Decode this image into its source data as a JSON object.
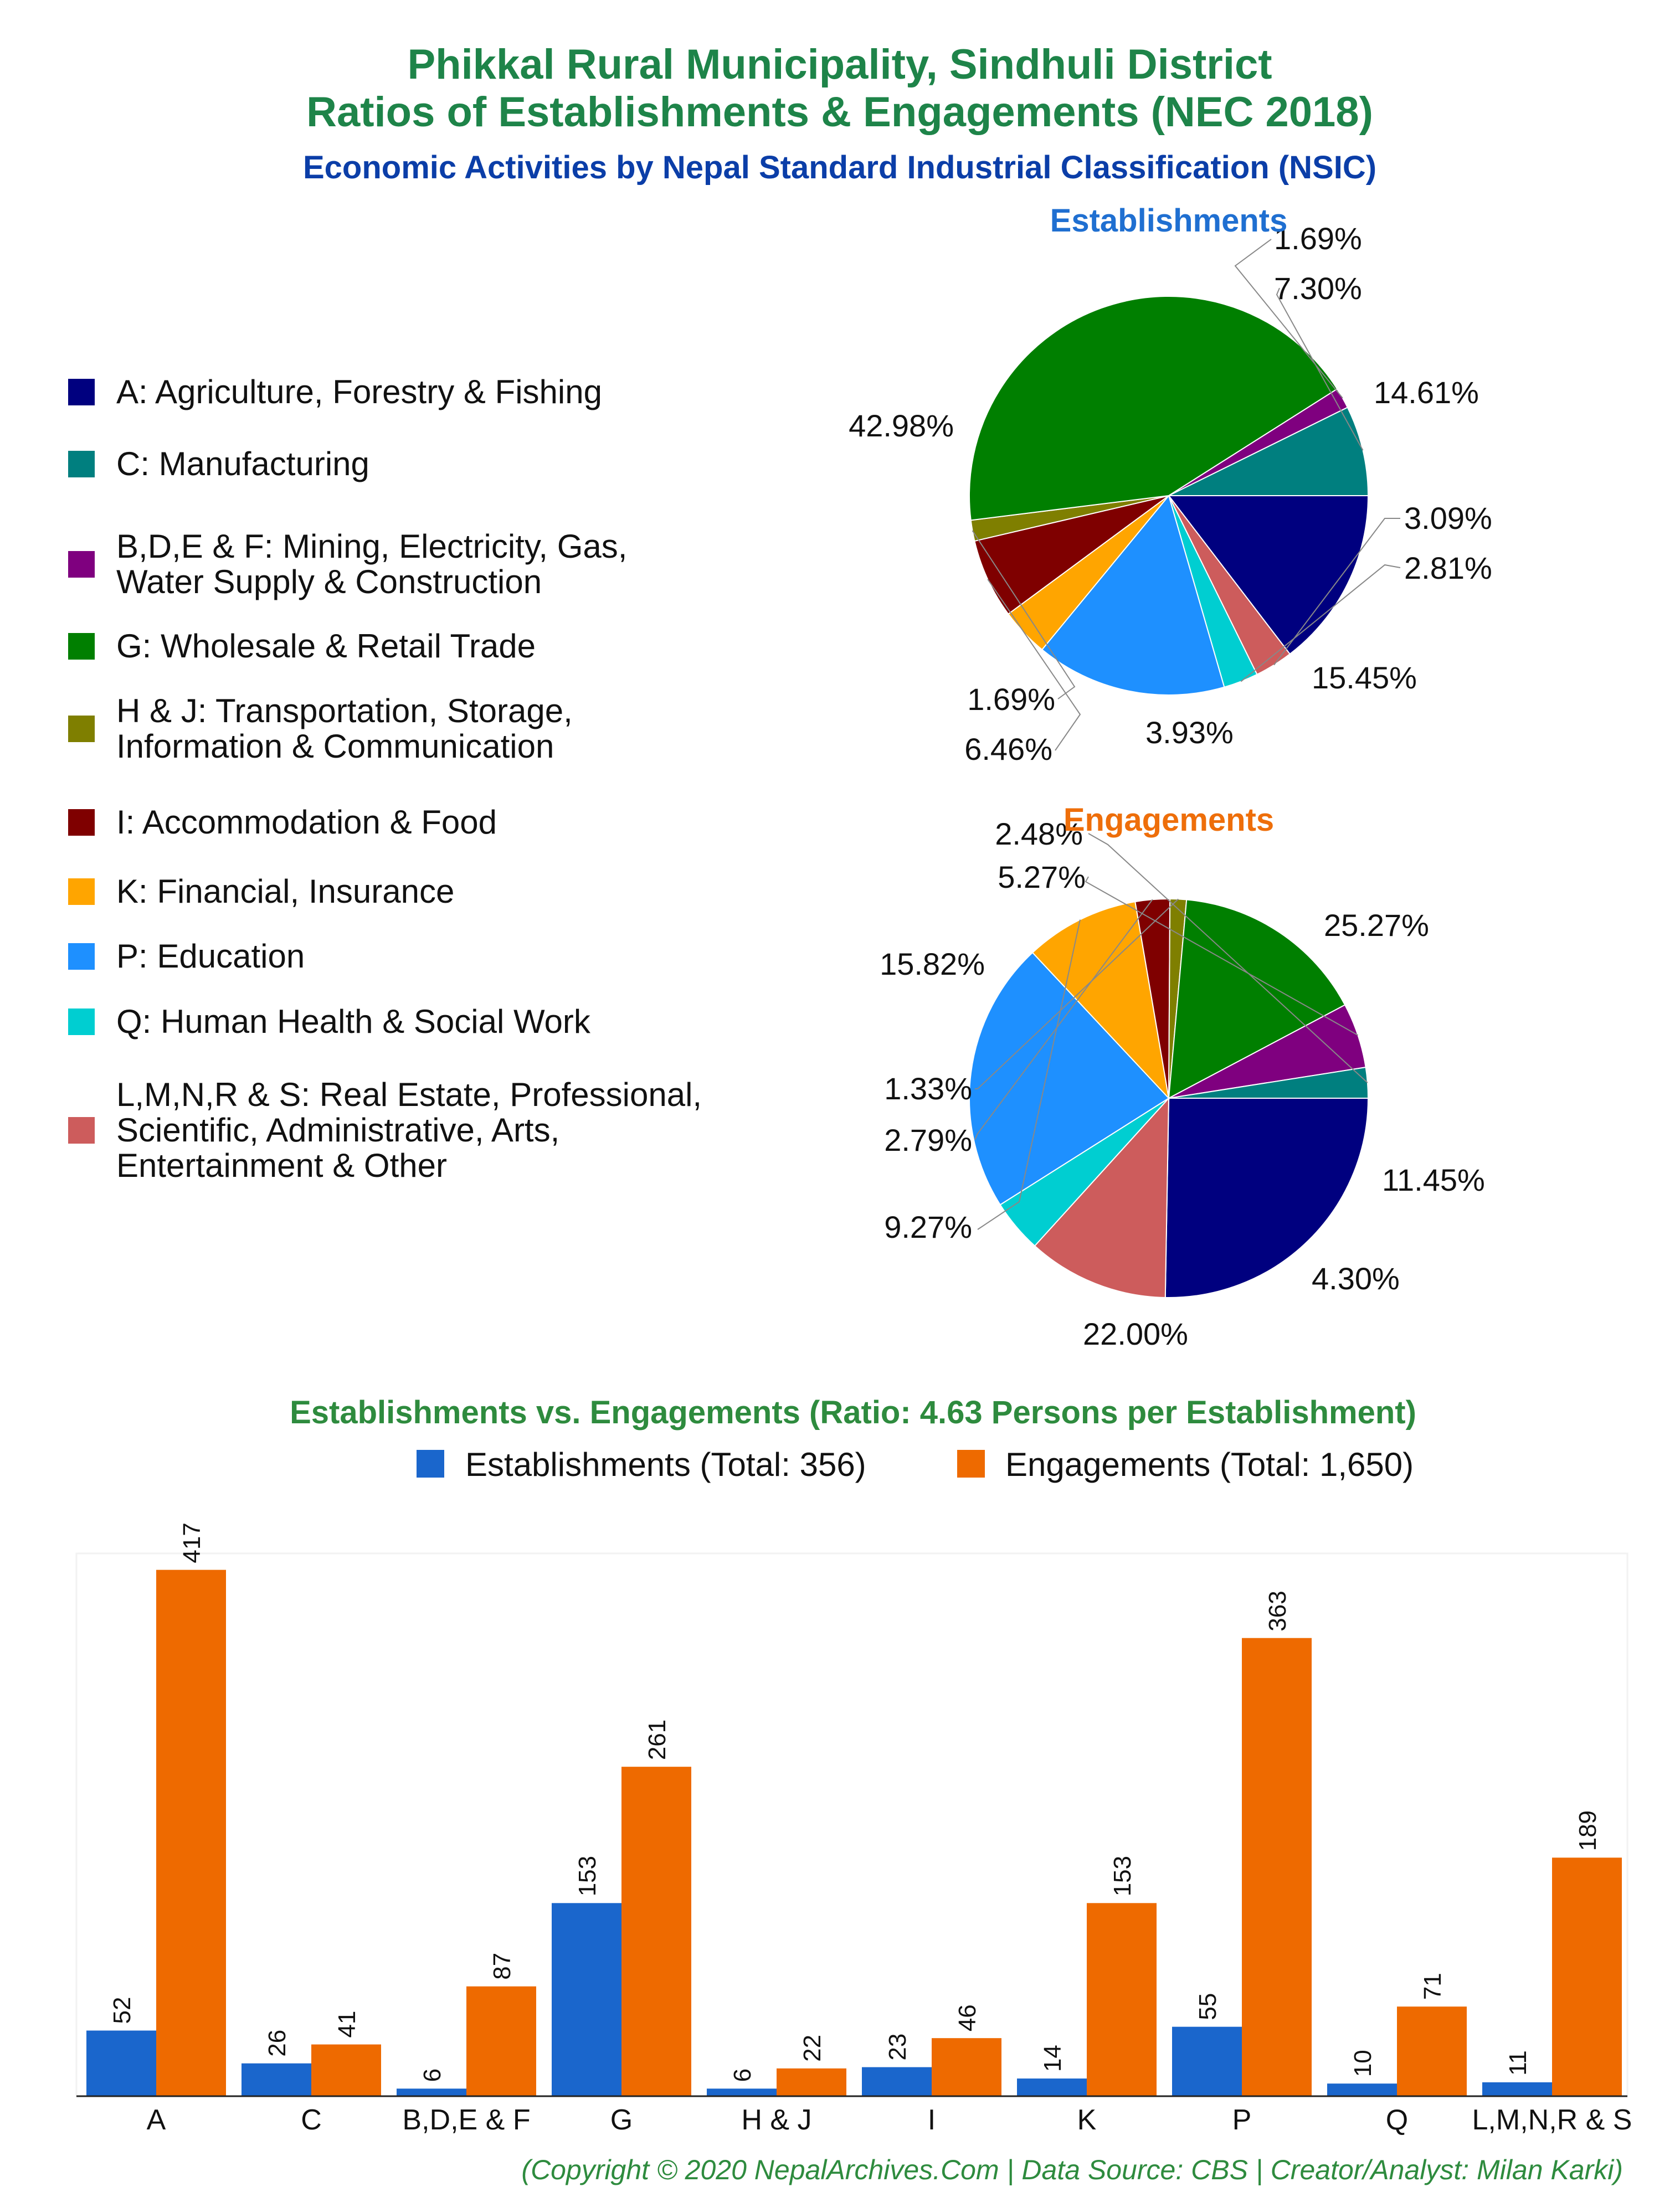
{
  "header": {
    "title_line1": "Phikkal Rural Municipality, Sindhuli District",
    "title_line2": "Ratios of Establishments & Engagements (NEC 2018)",
    "subtitle": "Economic Activities by Nepal Standard Industrial Classification (NSIC)"
  },
  "legend": [
    {
      "label": "A: Agriculture, Forestry & Fishing",
      "color": "#00007f"
    },
    {
      "label": "C: Manufacturing",
      "color": "#007f7f"
    },
    {
      "label": "B,D,E & F: Mining, Electricity, Gas,",
      "label2": "Water Supply & Construction",
      "color": "#7f007f"
    },
    {
      "label": "G: Wholesale & Retail Trade",
      "color": "#007f00"
    },
    {
      "label": "H & J: Transportation, Storage,",
      "label2": "Information & Communication",
      "color": "#7f7f00"
    },
    {
      "label": "I: Accommodation & Food",
      "color": "#7f0000"
    },
    {
      "label": "K: Financial, Insurance",
      "color": "#ffa500"
    },
    {
      "label": "P: Education",
      "color": "#1e90ff"
    },
    {
      "label": "Q: Human Health & Social Work",
      "color": "#00ced1"
    },
    {
      "label": "L,M,N,R & S: Real Estate, Professional,",
      "label2": "Scientific, Administrative, Arts,",
      "label3": "Entertainment & Other",
      "color": "#cd5c5c"
    }
  ],
  "chart_data": [
    {
      "type": "pie",
      "title": "Establishments",
      "slices": [
        {
          "category": "A",
          "value": 14.61,
          "label": "14.61%"
        },
        {
          "category": "L,M,N,R & S",
          "value": 3.09,
          "label": "3.09%"
        },
        {
          "category": "Q",
          "value": 2.81,
          "label": "2.81%"
        },
        {
          "category": "P",
          "value": 15.45,
          "label": "15.45%"
        },
        {
          "category": "K",
          "value": 3.93,
          "label": "3.93%"
        },
        {
          "category": "I",
          "value": 6.46,
          "label": "6.46%"
        },
        {
          "category": "H & J",
          "value": 1.69,
          "label": "1.69%"
        },
        {
          "category": "G",
          "value": 42.98,
          "label": "42.98%"
        },
        {
          "category": "B,D,E & F",
          "value": 1.69,
          "label": "1.69%"
        },
        {
          "category": "C",
          "value": 7.3,
          "label": "7.30%"
        }
      ]
    },
    {
      "type": "pie",
      "title": "Engagements",
      "slices": [
        {
          "category": "A",
          "value": 25.27,
          "label": "25.27%"
        },
        {
          "category": "L,M,N,R & S",
          "value": 11.45,
          "label": "11.45%"
        },
        {
          "category": "Q",
          "value": 4.3,
          "label": "4.30%"
        },
        {
          "category": "P",
          "value": 22.0,
          "label": "22.00%"
        },
        {
          "category": "K",
          "value": 9.27,
          "label": "9.27%"
        },
        {
          "category": "I",
          "value": 2.79,
          "label": "2.79%"
        },
        {
          "category": "H & J",
          "value": 1.33,
          "label": "1.33%"
        },
        {
          "category": "G",
          "value": 15.82,
          "label": "15.82%"
        },
        {
          "category": "B,D,E & F",
          "value": 5.27,
          "label": "5.27%"
        },
        {
          "category": "C",
          "value": 2.48,
          "label": "2.48%"
        }
      ]
    },
    {
      "type": "bar",
      "title": "Establishments vs. Engagements (Ratio: 4.63 Persons per Establishment)",
      "categories": [
        "A",
        "C",
        "B,D,E & F",
        "G",
        "H & J",
        "I",
        "K",
        "P",
        "Q",
        "L,M,N,R & S"
      ],
      "series": [
        {
          "name": "Establishments (Total: 356)",
          "color": "#1a66cc",
          "values": [
            52,
            26,
            6,
            153,
            6,
            23,
            14,
            55,
            10,
            11
          ]
        },
        {
          "name": "Engagements (Total: 1,650)",
          "color": "#ee6a00",
          "values": [
            417,
            41,
            87,
            261,
            22,
            46,
            153,
            363,
            71,
            189
          ]
        }
      ],
      "ylim": [
        0,
        430
      ],
      "grid": false,
      "legend": "top"
    }
  ],
  "colors": {
    "A": "#00007f",
    "C": "#007f7f",
    "B,D,E & F": "#7f007f",
    "G": "#007f00",
    "H & J": "#7f7f00",
    "I": "#7f0000",
    "K": "#ffa500",
    "P": "#1e90ff",
    "Q": "#00ced1",
    "L,M,N,R & S": "#cd5c5c"
  },
  "footer": "(Copyright © 2020 NepalArchives.Com | Data Source: CBS | Creator/Analyst: Milan Karki)"
}
